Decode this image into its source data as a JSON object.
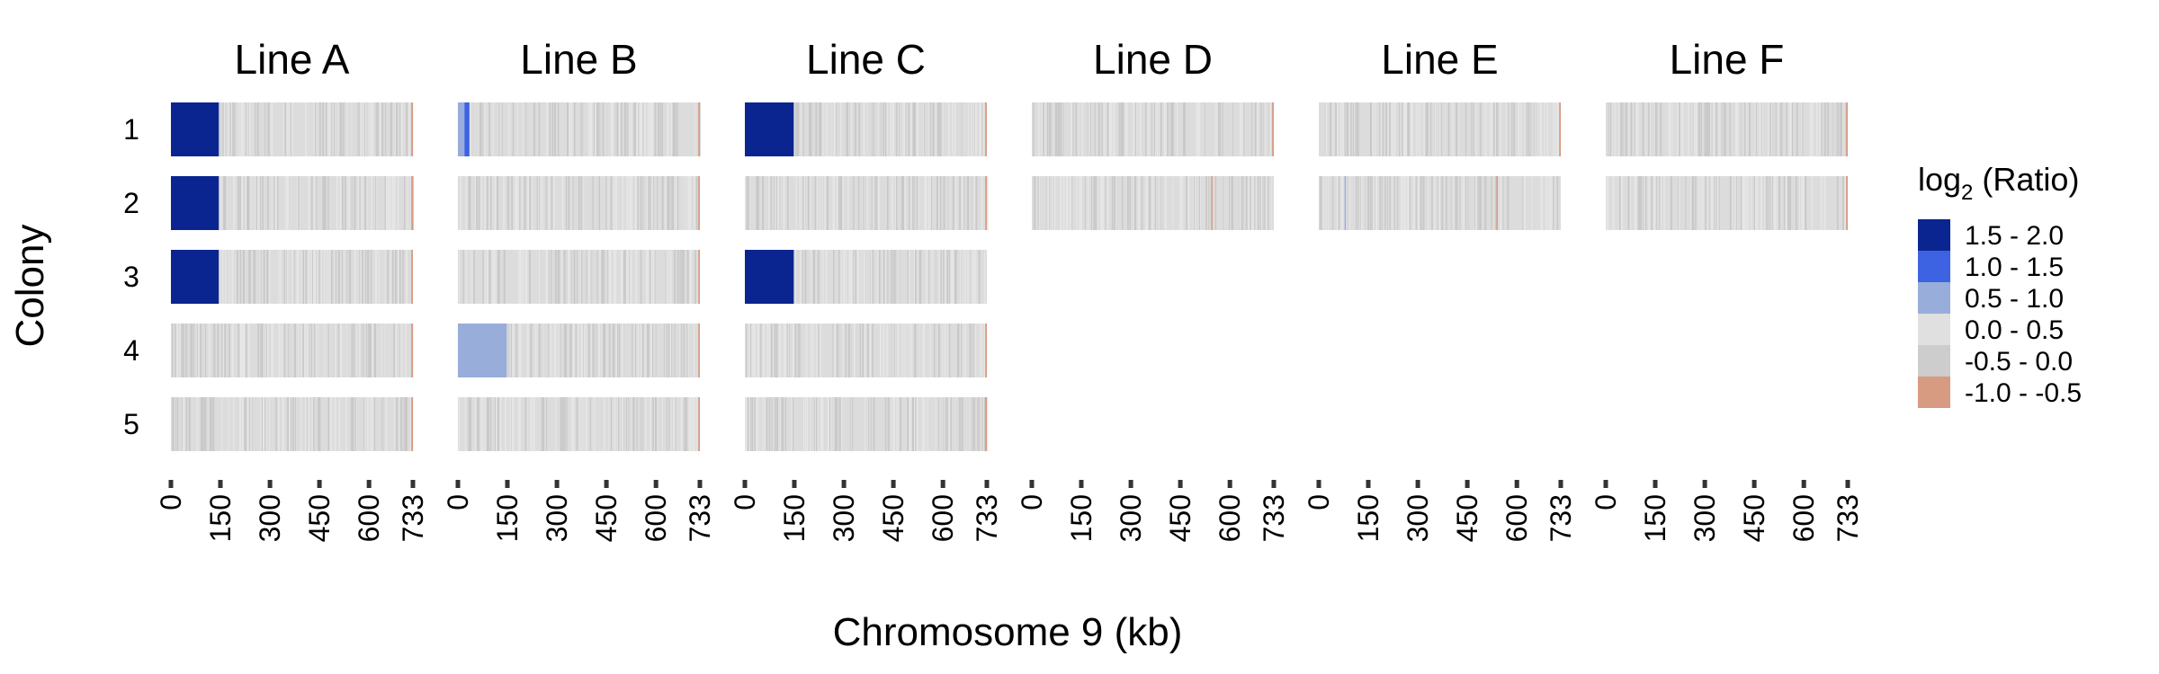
{
  "chart_data": {
    "type": "heatmap",
    "xlabel": "Chromosome 9 (kb)",
    "ylabel": "Colony",
    "xlim": [
      0,
      733
    ],
    "x_ticks": [
      0,
      150,
      300,
      450,
      600,
      733
    ],
    "x_tick_labels": [
      "0",
      "150",
      "300",
      "450",
      "600",
      "733"
    ],
    "rows": [
      "1",
      "2",
      "3",
      "4",
      "5"
    ],
    "legend": {
      "title_prefix": "log",
      "title_subscript": "2",
      "title_suffix": " (Ratio)",
      "bins": [
        {
          "label": "1.5 - 2.0",
          "color": "#0b2590"
        },
        {
          "label": "1.0 - 1.5",
          "color": "#3d62e2"
        },
        {
          "label": "0.5 - 1.0",
          "color": "#98add9"
        },
        {
          "label": "0.0 - 0.5",
          "color": "#e0e0e0"
        },
        {
          "label": "-0.5 - 0.0",
          "color": "#cdcdcd"
        },
        {
          "label": "-1.0 - -0.5",
          "color": "#d79b82"
        }
      ]
    },
    "facets": [
      {
        "title": "Line A",
        "tracks": [
          {
            "colony": "1",
            "segments": [
              {
                "start": 0,
                "end": 145,
                "bin": 0
              },
              {
                "start": 728,
                "end": 733,
                "bin": 5
              }
            ]
          },
          {
            "colony": "2",
            "segments": [
              {
                "start": 0,
                "end": 145,
                "bin": 0
              },
              {
                "start": 728,
                "end": 733,
                "bin": 5
              }
            ]
          },
          {
            "colony": "3",
            "segments": [
              {
                "start": 0,
                "end": 145,
                "bin": 0
              },
              {
                "start": 728,
                "end": 733,
                "bin": 5
              }
            ]
          },
          {
            "colony": "4",
            "segments": [
              {
                "start": 728,
                "end": 733,
                "bin": 5
              }
            ]
          },
          {
            "colony": "5",
            "segments": [
              {
                "start": 728,
                "end": 733,
                "bin": 5
              }
            ]
          }
        ]
      },
      {
        "title": "Line B",
        "tracks": [
          {
            "colony": "1",
            "segments": [
              {
                "start": 0,
                "end": 20,
                "bin": 2
              },
              {
                "start": 20,
                "end": 35,
                "bin": 1
              },
              {
                "start": 728,
                "end": 733,
                "bin": 5
              }
            ]
          },
          {
            "colony": "2",
            "segments": [
              {
                "start": 728,
                "end": 733,
                "bin": 5
              }
            ]
          },
          {
            "colony": "3",
            "segments": [
              {
                "start": 728,
                "end": 733,
                "bin": 5
              }
            ]
          },
          {
            "colony": "4",
            "segments": [
              {
                "start": 0,
                "end": 148,
                "bin": 2
              },
              {
                "start": 728,
                "end": 733,
                "bin": 5
              }
            ]
          },
          {
            "colony": "5",
            "segments": [
              {
                "start": 728,
                "end": 733,
                "bin": 5
              }
            ]
          }
        ]
      },
      {
        "title": "Line C",
        "tracks": [
          {
            "colony": "1",
            "segments": [
              {
                "start": 0,
                "end": 148,
                "bin": 0
              },
              {
                "start": 728,
                "end": 733,
                "bin": 5
              }
            ]
          },
          {
            "colony": "2",
            "segments": [
              {
                "start": 728,
                "end": 733,
                "bin": 5
              }
            ]
          },
          {
            "colony": "3",
            "segments": [
              {
                "start": 0,
                "end": 148,
                "bin": 0
              }
            ]
          },
          {
            "colony": "4",
            "segments": [
              {
                "start": 728,
                "end": 733,
                "bin": 5
              }
            ]
          },
          {
            "colony": "5",
            "segments": [
              {
                "start": 728,
                "end": 733,
                "bin": 5
              }
            ]
          }
        ]
      },
      {
        "title": "Line D",
        "tracks": [
          {
            "colony": "1",
            "segments": [
              {
                "start": 728,
                "end": 733,
                "bin": 5
              }
            ]
          },
          {
            "colony": "2",
            "segments": [
              {
                "start": 543,
                "end": 547,
                "bin": 5
              }
            ]
          }
        ]
      },
      {
        "title": "Line E",
        "tracks": [
          {
            "colony": "1",
            "segments": [
              {
                "start": 728,
                "end": 733,
                "bin": 5
              }
            ]
          },
          {
            "colony": "2",
            "segments": [
              {
                "start": 78,
                "end": 82,
                "bin": 2
              },
              {
                "start": 538,
                "end": 542,
                "bin": 5
              }
            ]
          }
        ]
      },
      {
        "title": "Line F",
        "tracks": [
          {
            "colony": "1",
            "segments": [
              {
                "start": 728,
                "end": 733,
                "bin": 5
              }
            ]
          },
          {
            "colony": "2",
            "segments": [
              {
                "start": 728,
                "end": 733,
                "bin": 5
              }
            ]
          }
        ]
      }
    ]
  }
}
